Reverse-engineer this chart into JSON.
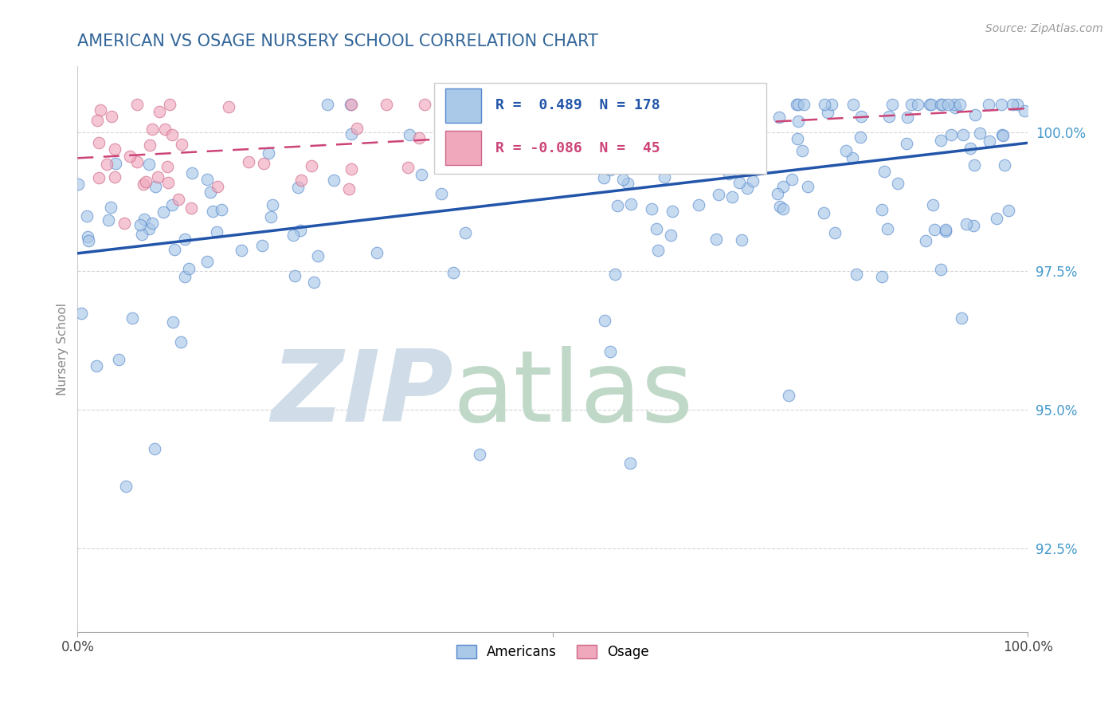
{
  "title": "AMERICAN VS OSAGE NURSERY SCHOOL CORRELATION CHART",
  "source": "Source: ZipAtlas.com",
  "ylabel": "Nursery School",
  "yticks": [
    92.5,
    95.0,
    97.5,
    100.0
  ],
  "ytick_labels": [
    "92.5%",
    "95.0%",
    "97.5%",
    "100.0%"
  ],
  "xlim": [
    0.0,
    100.0
  ],
  "ylim": [
    91.0,
    101.2
  ],
  "american_R": 0.489,
  "american_N": 178,
  "osage_R": -0.086,
  "osage_N": 45,
  "american_color": "#aac8e8",
  "american_edge": "#5588cc",
  "american_line_color": "#2255aa",
  "osage_color": "#f0a8bc",
  "osage_edge": "#cc6688",
  "osage_line_color": "#cc4477",
  "watermark_zip_color": "#d0dde8",
  "watermark_atlas_color": "#c0d8c8",
  "background_color": "#ffffff",
  "grid_color": "#cccccc",
  "title_color": "#336699",
  "title_fontsize": 15,
  "axis_label_color": "#888888",
  "ytick_color": "#4499cc",
  "source_color": "#999999",
  "legend_border_color": "#cccccc"
}
